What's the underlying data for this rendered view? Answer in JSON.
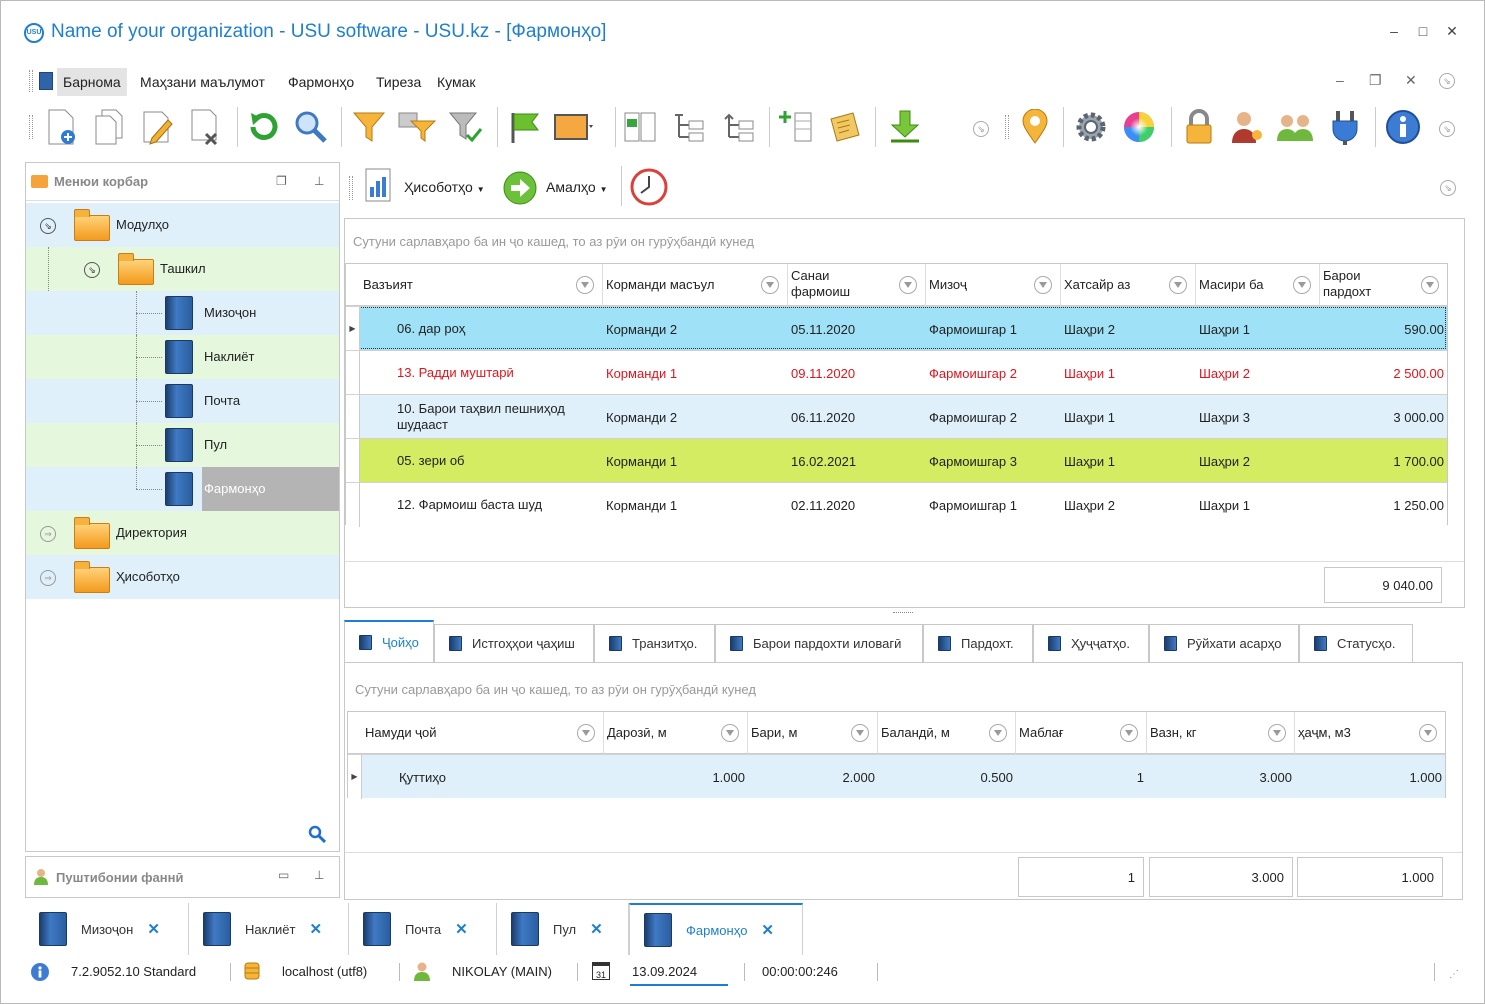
{
  "window": {
    "logo_text": "USU",
    "title": "Name of your organization - USU software - USU.kz - [Фармонҳо]",
    "controls": {
      "minimize": "–",
      "maximize": "□",
      "close": "✕"
    }
  },
  "menu": {
    "items": [
      "Барнома",
      "Маҳзани маълумот",
      "Фармонҳо",
      "Тиреза",
      "Кумак"
    ],
    "mdi_controls": {
      "minimize": "–",
      "restore": "❐",
      "close": "✕"
    }
  },
  "left_panel": {
    "title": "Менюи корбар",
    "tree": {
      "modules": "Модулҳо",
      "org": "Ташкил",
      "items": [
        "Мизоҷон",
        "Наклиёт",
        "Почта",
        "Пул",
        "Фармонҳо"
      ],
      "directory": "Директория",
      "reports": "Ҳисоботҳо"
    },
    "support_title": "Пуштибонии фаннӣ"
  },
  "sub_toolbar": {
    "reports_label": "Ҳисоботҳо",
    "actions_label": "Амалҳо"
  },
  "orders_grid": {
    "group_hint": "Сутуни сарлавҳаро ба ин ҷо кашед, то аз рӯи он гурӯҳбандӣ кунед",
    "columns": [
      "Вазъият",
      "Корманди масъул",
      "Санаи фармоиш",
      "Мизоҷ",
      "Хатсайр аз",
      "Масири ба",
      "Барои пардохт"
    ],
    "rows": [
      {
        "status": "06. дар роҳ",
        "employee": "Корманди 2",
        "date": "05.11.2020",
        "client": "Фармоишгар 1",
        "from": "Шаҳри 2",
        "to": "Шаҳри 1",
        "amount": "590.00"
      },
      {
        "status": "13. Радди муштарӣ",
        "employee": "Корманди 1",
        "date": "09.11.2020",
        "client": "Фармоишгар 2",
        "from": "Шаҳри 1",
        "to": "Шаҳри 2",
        "amount": "2 500.00"
      },
      {
        "status": "10. Барои таҳвил пешниҳод шудааст",
        "employee": "Корманди 2",
        "date": "06.11.2020",
        "client": "Фармоишгар 2",
        "from": "Шаҳри 1",
        "to": "Шаҳри 3",
        "amount": "3 000.00"
      },
      {
        "status": "05. зери об",
        "employee": "Корманди 1",
        "date": "16.02.2021",
        "client": "Фармоишгар 3",
        "from": "Шаҳри 1",
        "to": "Шаҳри 2",
        "amount": "1 700.00"
      },
      {
        "status": "12. Фармоиш баста шуд",
        "employee": "Корманди 1",
        "date": "02.11.2020",
        "client": "Фармоишгар 1",
        "from": "Шаҳри 2",
        "to": "Шаҳри 1",
        "amount": "1 250.00"
      }
    ],
    "total": "9 040.00",
    "row_colors": [
      "#9fe1f7",
      "#ffffff",
      "#dff0fb",
      "#d4ec62",
      "#ffffff"
    ],
    "red_text": "#e0141e"
  },
  "detail_tabs": [
    "Ҷойҳо",
    "Истгоҳҳои ҷаҳиш",
    "Транзитҳо.",
    "Барои пардохти иловагӣ",
    "Пардохт.",
    "Ҳуҷҷатҳо.",
    "Рӯйхати асарҳо",
    "Статусҳо."
  ],
  "places_grid": {
    "group_hint": "Сутуни сарлавҳаро ба ин ҷо кашед, то аз рӯи он гурӯҳбандӣ кунед",
    "columns": [
      "Намуди ҷой",
      "Дарозӣ, м",
      "Бари, м",
      "Баландӣ, м",
      "Маблағ",
      "Вазн, кг",
      "ҳаҷм, м3"
    ],
    "row": {
      "type": "Қуттиҳо",
      "length": "1.000",
      "width": "2.000",
      "height": "0.500",
      "qty": "1",
      "weight": "3.000",
      "volume": "1.000"
    },
    "totals": {
      "qty": "1",
      "weight": "3.000",
      "volume": "1.000"
    }
  },
  "doc_tabs": [
    {
      "label": "Мизоҷон",
      "close": "✕"
    },
    {
      "label": "Наклиёт",
      "close": "✕"
    },
    {
      "label": "Почта",
      "close": "✕"
    },
    {
      "label": "Пул",
      "close": "✕"
    },
    {
      "label": "Фармонҳо",
      "close": "✕"
    }
  ],
  "status_bar": {
    "version": "7.2.9052.10 Standard",
    "db": "localhost (utf8)",
    "user": "NIKOLAY (MAIN)",
    "calendar_day": "31",
    "date": "13.09.2024",
    "timer": "00:00:00:246"
  },
  "colors": {
    "accent": "#1e7fd0",
    "tree_blue": "#dff0fb",
    "tree_green": "#e5f7dc",
    "tree_selected": "#b4b4b4"
  }
}
